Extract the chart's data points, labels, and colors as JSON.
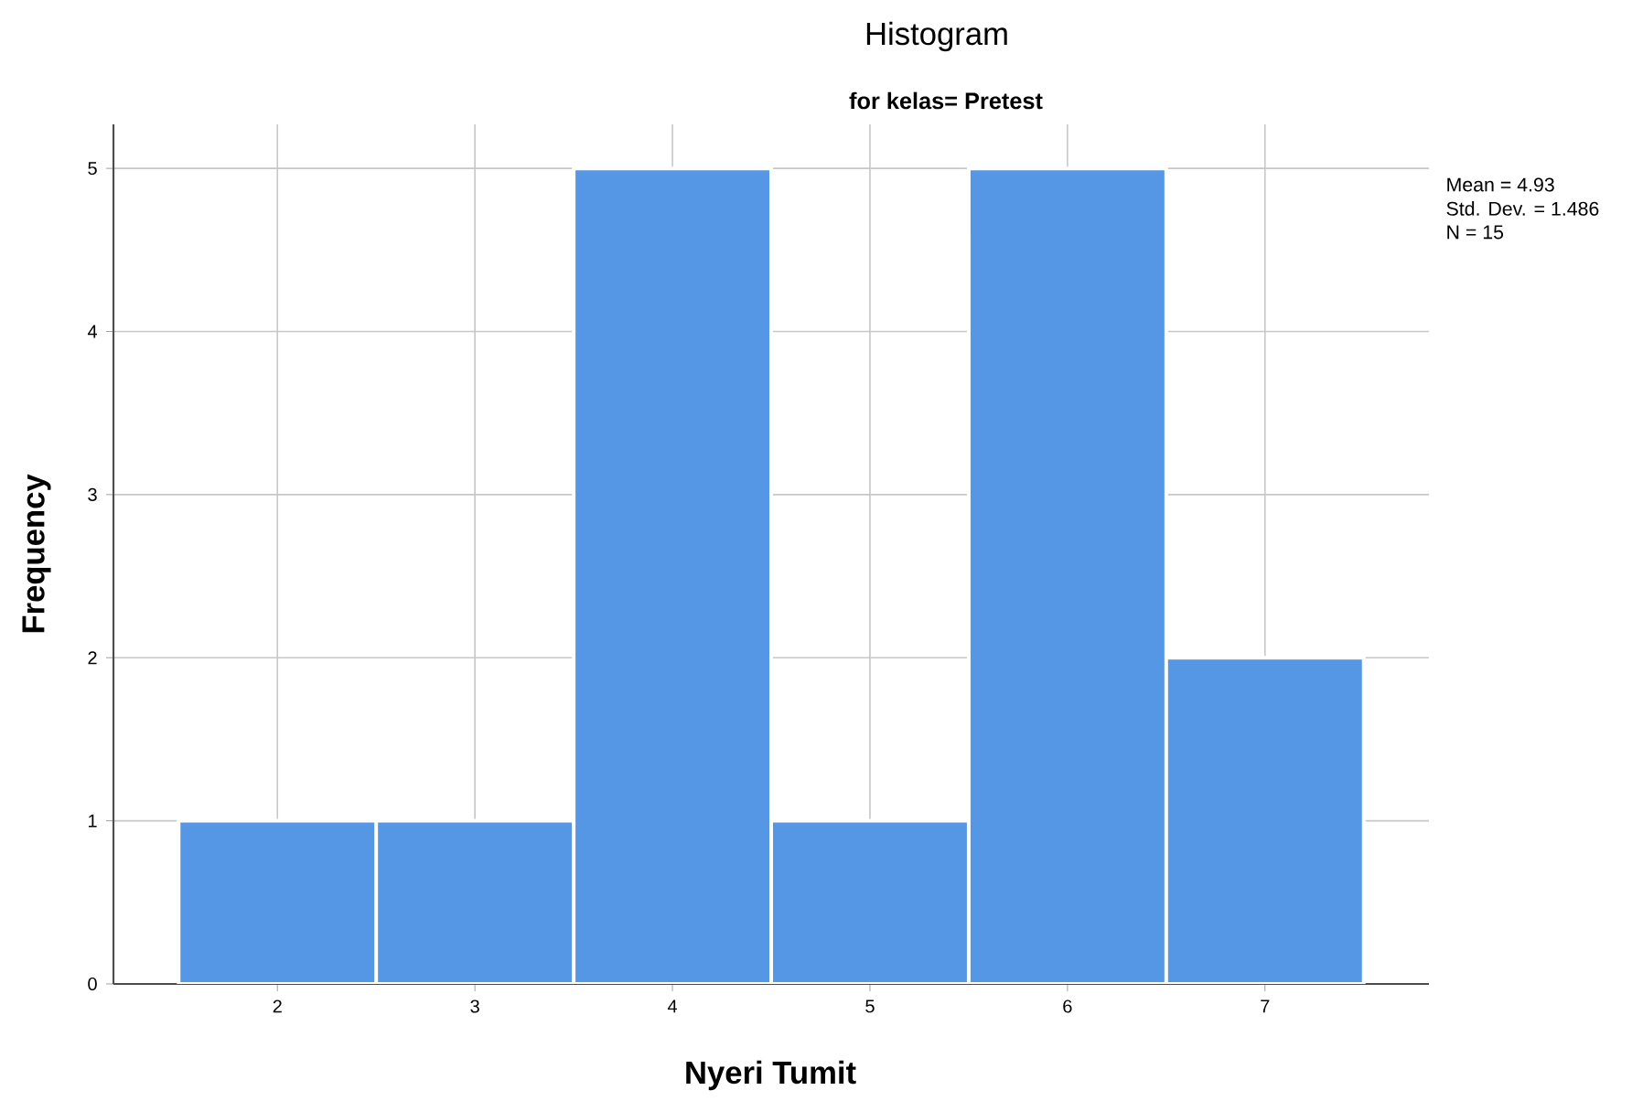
{
  "chart_data": {
    "type": "histogram",
    "title": "Histogram",
    "subtitle": "for kelas= Pretest",
    "xlabel": "Nyeri Tumit",
    "ylabel": "Frequency",
    "bins": [
      1.5,
      2.5,
      3.5,
      4.5,
      5.5,
      6.5,
      7.5
    ],
    "values": [
      1,
      1,
      5,
      1,
      5,
      2
    ],
    "color": "#5596e5",
    "xlim": [
      1.17,
      7.83
    ],
    "ylim": [
      0,
      5.27
    ],
    "xticks": [
      2,
      3,
      4,
      5,
      6,
      7
    ],
    "yticks": [
      0,
      1,
      2,
      3,
      4,
      5
    ],
    "grid": true,
    "annotations": [
      "Mean = 4.93",
      "Std. Dev. = 1.486",
      "N = 15"
    ]
  }
}
